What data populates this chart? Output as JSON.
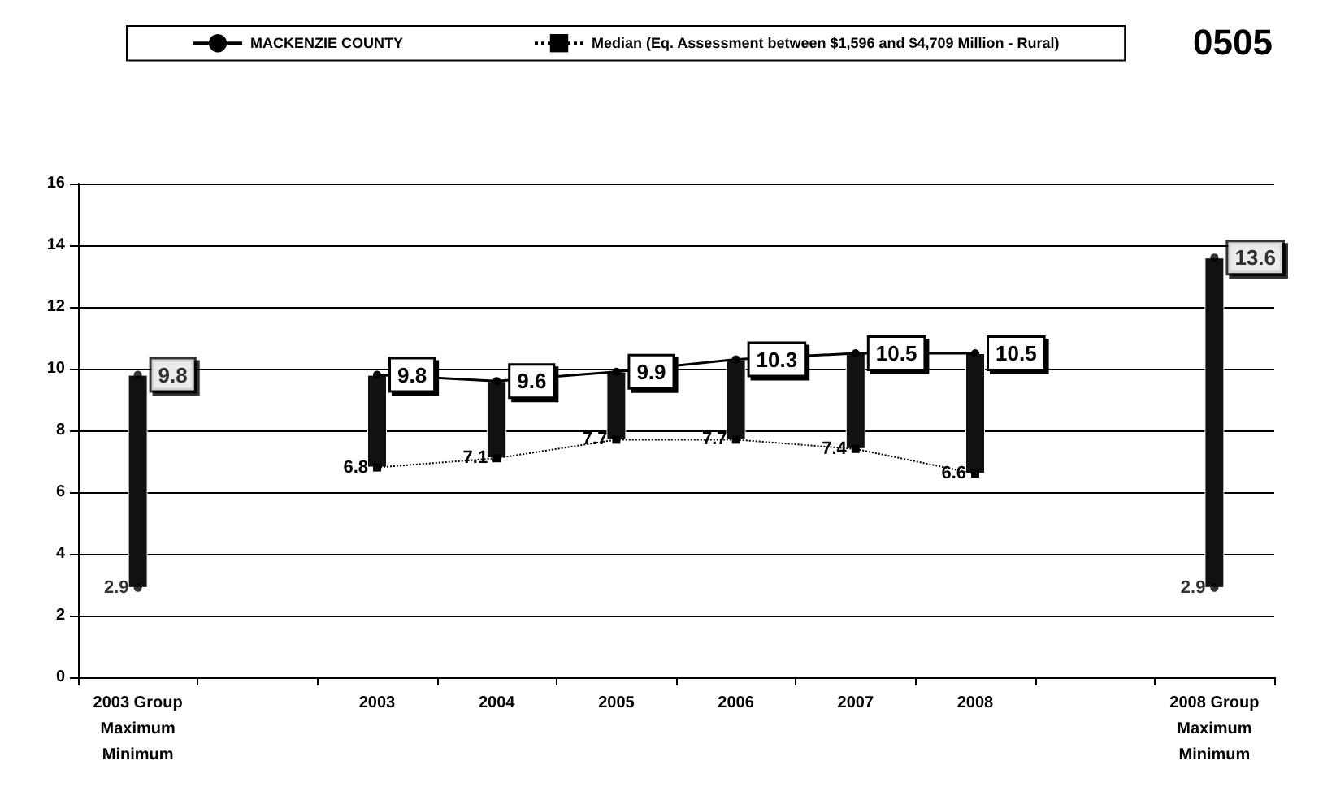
{
  "chart_data": {
    "type": "line",
    "title": "0505",
    "categories": [
      "2003 Group\nMaximum\nMinimum",
      null,
      "2003",
      "2004",
      "2005",
      "2006",
      "2007",
      "2008",
      null,
      "2008 Group\nMaximum\nMinimum"
    ],
    "series": [
      {
        "type": "bar",
        "color": "#111111",
        "base": [
          2.9,
          null,
          6.8,
          7.1,
          7.7,
          7.7,
          7.4,
          6.6,
          null,
          2.9
        ],
        "values": [
          6.9,
          null,
          3.0,
          2.5,
          2.2,
          2.6,
          3.1,
          3.9,
          null,
          10.7
        ]
      },
      {
        "name": "MACKENZIE COUNTY",
        "color": "#000000",
        "line_style": "solid",
        "marker": "circle",
        "data_labels": true,
        "values": [
          null,
          null,
          9.8,
          9.6,
          9.9,
          10.3,
          10.5,
          10.5,
          null,
          null
        ]
      },
      {
        "name": "Median (Eq. Assessment between $1,596 and $4,709 Million - Rural)",
        "color": "#000000",
        "line_style": "dotted",
        "marker": "square",
        "data_labels": true,
        "values": [
          null,
          null,
          6.8,
          7.1,
          7.7,
          7.7,
          7.4,
          6.6,
          null,
          null
        ]
      },
      {
        "type": "scatter",
        "color": "#000000",
        "marker": "circle",
        "data_labels": true,
        "values": [
          9.8,
          null,
          null,
          null,
          null,
          null,
          null,
          null,
          null,
          13.6
        ]
      },
      {
        "type": "scatter",
        "color": "#000000",
        "marker": "circle",
        "data_labels": true,
        "values": [
          2.9,
          null,
          null,
          null,
          null,
          null,
          null,
          null,
          null,
          2.9
        ]
      }
    ],
    "ylim": [
      0,
      16
    ],
    "yticks": [
      0,
      2,
      4,
      6,
      8,
      10,
      12,
      14,
      16
    ],
    "grid": "y",
    "legend": "top"
  }
}
